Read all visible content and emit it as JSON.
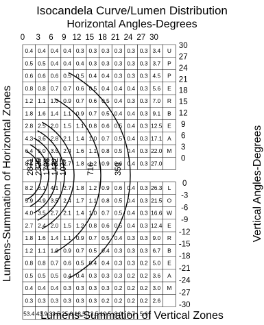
{
  "chart_data": {
    "type": "table",
    "title": "Isocandela Curve/Lumen Distribution",
    "xlabel": "Horizontal Angles-Degrees",
    "ylabel_left": "Lumens-Summation of Horizontal Zones",
    "ylabel_right": "Vertical Angles-Degrees",
    "bottom_label": "Lumens-Summation of Vertical Zones",
    "x_ticks": [
      "0",
      "3",
      "6",
      "9",
      "12",
      "15",
      "18",
      "21",
      "24",
      "27",
      "30"
    ],
    "y_ticks_top": [
      "30",
      "27",
      "24",
      "21",
      "18",
      "15",
      "12",
      "9",
      "6",
      "3",
      "0"
    ],
    "y_ticks_bottom": [
      "0",
      "-3",
      "-6",
      "-9",
      "-12",
      "-15",
      "-18",
      "-21",
      "-24",
      "-27",
      "-30"
    ],
    "top_rows": [
      {
        "values": [
          "0.4",
          "0.4",
          "0.4",
          "0.4",
          "0.3",
          "0.3",
          "0.3",
          "0.3",
          "0.3",
          "0.3",
          "3.4"
        ],
        "letter": "U"
      },
      {
        "values": [
          "0.5",
          "0.5",
          "0.4",
          "0.4",
          "0.4",
          "0.3",
          "0.3",
          "0.3",
          "0.3",
          "0.3",
          "3.7"
        ],
        "letter": "P"
      },
      {
        "values": [
          "0.6",
          "0.6",
          "0.6",
          "0.5",
          "0.5",
          "0.4",
          "0.4",
          "0.3",
          "0.3",
          "0.3",
          "4.5"
        ],
        "letter": "P"
      },
      {
        "values": [
          "0.8",
          "0.8",
          "0.7",
          "0.7",
          "0.6",
          "0.5",
          "0.4",
          "0.4",
          "0.4",
          "0.3",
          "5.6"
        ],
        "letter": "E"
      },
      {
        "values": [
          "1.2",
          "1.1",
          "1.0",
          "0.9",
          "0.7",
          "0.6",
          "0.5",
          "0.4",
          "0.3",
          "0.3",
          "7.0"
        ],
        "letter": "R"
      },
      {
        "values": [
          "1.8",
          "1.6",
          "1.4",
          "1.1",
          "0.9",
          "0.7",
          "0.5",
          "0.4",
          "0.4",
          "0.3",
          "9.1"
        ],
        "letter": "B"
      },
      {
        "values": [
          "2.8",
          "2.5",
          "2.0",
          "1.5",
          "1.1",
          "0.8",
          "0.6",
          "0.5",
          "0.4",
          "0.3",
          "12.5"
        ],
        "letter": "E"
      },
      {
        "values": [
          "4.3",
          "3.6",
          "2.8",
          "2.1",
          "1.4",
          "1.0",
          "0.7",
          "0.5",
          "0.4",
          "0.3",
          "17.1"
        ],
        "letter": "A"
      },
      {
        "values": [
          "6.4",
          "5.0",
          "3.5",
          "2.4",
          "1.6",
          "1.1",
          "0.8",
          "0.5",
          "0.4",
          "0.3",
          "22.0"
        ],
        "letter": "M"
      },
      {
        "values": [
          "8.4",
          "6.3",
          "4.1",
          "2.7",
          "1.8",
          "1.2",
          "0.9",
          "0.6",
          "0.4",
          "0.3",
          "27.0"
        ],
        "letter": ""
      }
    ],
    "bottom_rows": [
      {
        "values": [
          "8.2",
          "6.1",
          "4.1",
          "2.7",
          "1.8",
          "1.2",
          "0.9",
          "0.6",
          "0.4",
          "0.3",
          "26.3"
        ],
        "letter": "L"
      },
      {
        "values": [
          "5.9",
          "4.9",
          "3.5",
          "2.4",
          "1.7",
          "1.1",
          "0.8",
          "0.5",
          "0.4",
          "0.3",
          "21.5"
        ],
        "letter": "O"
      },
      {
        "values": [
          "4.0",
          "3.5",
          "2.7",
          "2.1",
          "1.4",
          "1.0",
          "0.7",
          "0.5",
          "0.4",
          "0.3",
          "16.6"
        ],
        "letter": "W"
      },
      {
        "values": [
          "2.7",
          "2.4",
          "2.0",
          "1.5",
          "1.2",
          "0.8",
          "0.6",
          "0.5",
          "0.4",
          "0.3",
          "12.4"
        ],
        "letter": "E"
      },
      {
        "values": [
          "1.8",
          "1.6",
          "1.4",
          "1.1",
          "0.9",
          "0.7",
          "0.5",
          "0.4",
          "0.3",
          "0.3",
          "9.0"
        ],
        "letter": "R"
      },
      {
        "values": [
          "1.2",
          "1.1",
          "1.0",
          "0.9",
          "0.7",
          "0.5",
          "0.4",
          "0.3",
          "0.3",
          "0.3",
          "6.7"
        ],
        "letter": "B"
      },
      {
        "values": [
          "0.8",
          "0.8",
          "0.7",
          "0.6",
          "0.5",
          "0.4",
          "0.4",
          "0.3",
          "0.3",
          "0.2",
          "5.0"
        ],
        "letter": "E"
      },
      {
        "values": [
          "0.5",
          "0.5",
          "0.5",
          "0.4",
          "0.4",
          "0.3",
          "0.3",
          "0.3",
          "0.2",
          "0.2",
          "3.6"
        ],
        "letter": "A"
      },
      {
        "values": [
          "0.4",
          "0.4",
          "0.4",
          "0.3",
          "0.3",
          "0.3",
          "0.3",
          "0.2",
          "0.2",
          "0.2",
          "3.0"
        ],
        "letter": "M"
      },
      {
        "values": [
          "0.3",
          "0.3",
          "0.3",
          "0.3",
          "0.3",
          "0.3",
          "0.2",
          "0.2",
          "0.2",
          "0.2",
          "2.6"
        ],
        "letter": ""
      }
    ],
    "totals_row": [
      "53.4",
      "43.9",
      "33.5",
      "25.0",
      "18.5",
      "13.5",
      "10.5",
      "8.0",
      "6.7",
      "5.6"
    ],
    "isocandela_labels": [
      "2871",
      "2329",
      "1793",
      "1432",
      "1077",
      "716",
      "359"
    ]
  }
}
